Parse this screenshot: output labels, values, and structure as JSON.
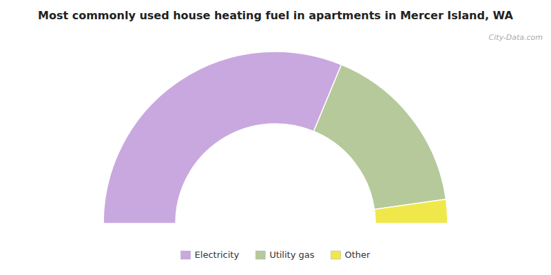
{
  "chart_data": {
    "type": "donut",
    "title": "Most commonly used house heating fuel in apartments in Mercer Island, WA",
    "categories": [
      "Electricity",
      "Utility gas",
      "Other"
    ],
    "values": [
      62.5,
      33.0,
      4.5
    ],
    "colors": [
      "#c9a8e0",
      "#b5c99a",
      "#f0e84a"
    ],
    "annotations": [
      "City-Data.com"
    ],
    "legend": "bottom"
  }
}
